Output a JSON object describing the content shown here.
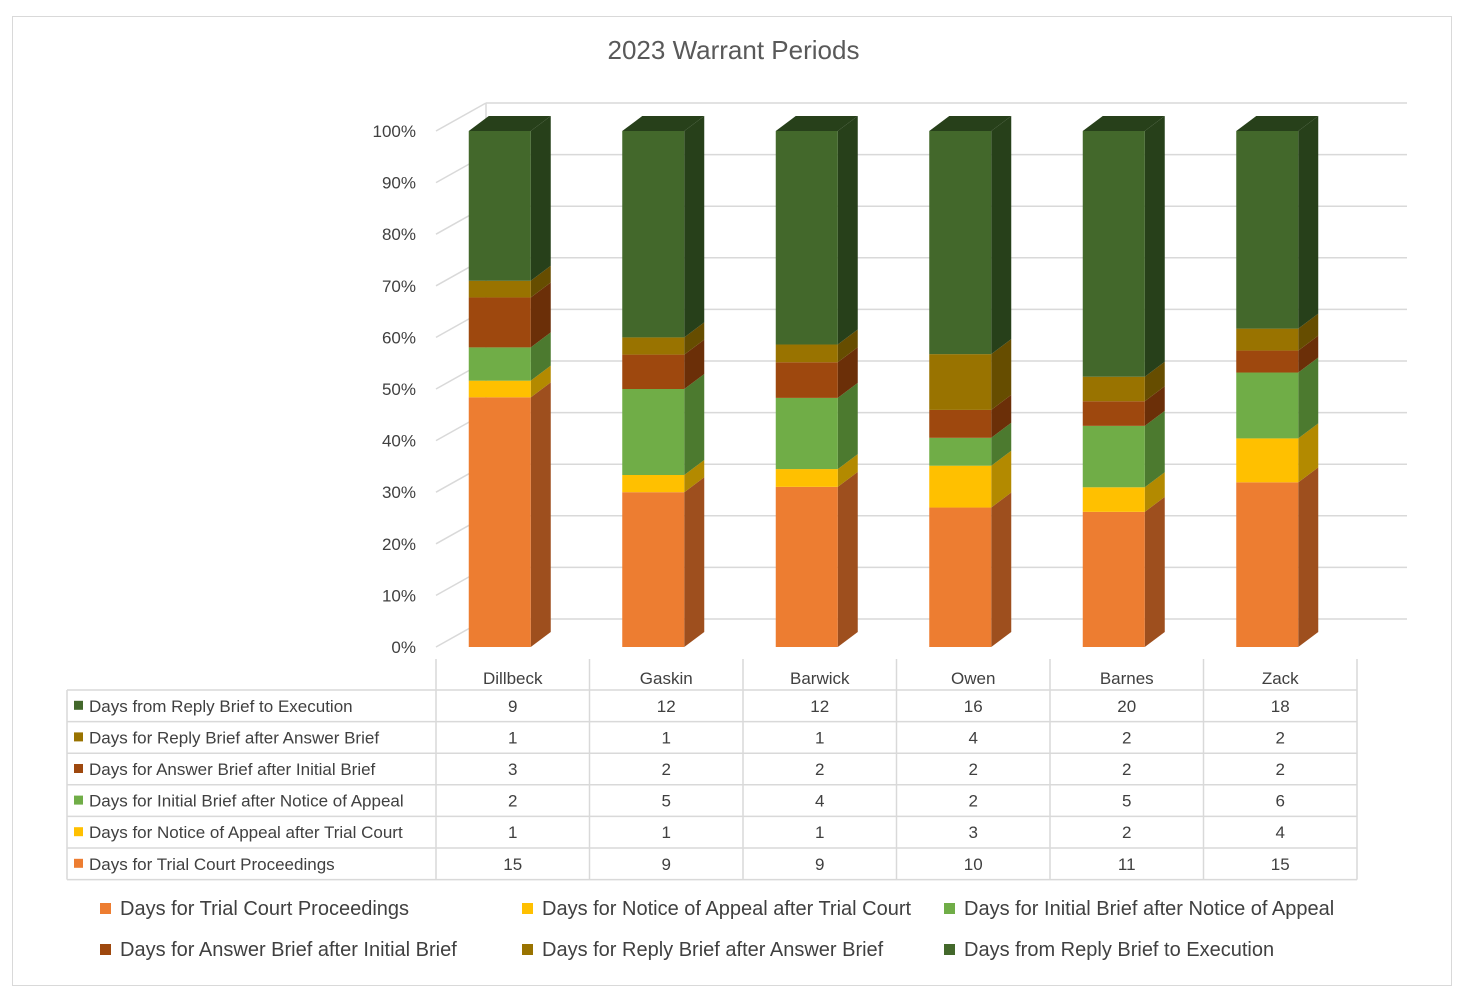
{
  "chart_data": {
    "type": "bar",
    "stacked": "percent",
    "three_d": true,
    "title": "2023 Warrant Periods",
    "categories": [
      "Dillbeck",
      "Gaskin",
      "Barwick",
      "Owen",
      "Barnes",
      "Zack"
    ],
    "y_ticks": [
      "0%",
      "10%",
      "20%",
      "30%",
      "40%",
      "50%",
      "60%",
      "70%",
      "80%",
      "90%",
      "100%"
    ],
    "ylim": [
      0,
      100
    ],
    "grid": true,
    "data_table": true,
    "legend_position": "bottom",
    "series": [
      {
        "name": "Days for Trial Court Proceedings",
        "color": "#ED7D31",
        "side_color": "#9E4F1E",
        "values": [
          15,
          9,
          9,
          10,
          11,
          15
        ]
      },
      {
        "name": "Days for Notice of Appeal after Trial Court",
        "color": "#FFC000",
        "side_color": "#B38A00",
        "values": [
          1,
          1,
          1,
          3,
          2,
          4
        ]
      },
      {
        "name": "Days for Initial Brief after Notice of Appeal",
        "color": "#70AD47",
        "side_color": "#4C7A2F",
        "values": [
          2,
          5,
          4,
          2,
          5,
          6
        ]
      },
      {
        "name": "Days for Answer Brief after Initial Brief",
        "color": "#9E480E",
        "side_color": "#6B2F08",
        "values": [
          3,
          2,
          2,
          2,
          2,
          2
        ]
      },
      {
        "name": "Days for Reply Brief after Answer Brief",
        "color": "#997300",
        "side_color": "#664D00",
        "values": [
          1,
          1,
          1,
          4,
          2,
          2
        ]
      },
      {
        "name": "Days from Reply Brief to Execution",
        "color": "#43682B",
        "side_color": "#27401A",
        "values": [
          9,
          12,
          12,
          16,
          20,
          18
        ]
      }
    ]
  }
}
